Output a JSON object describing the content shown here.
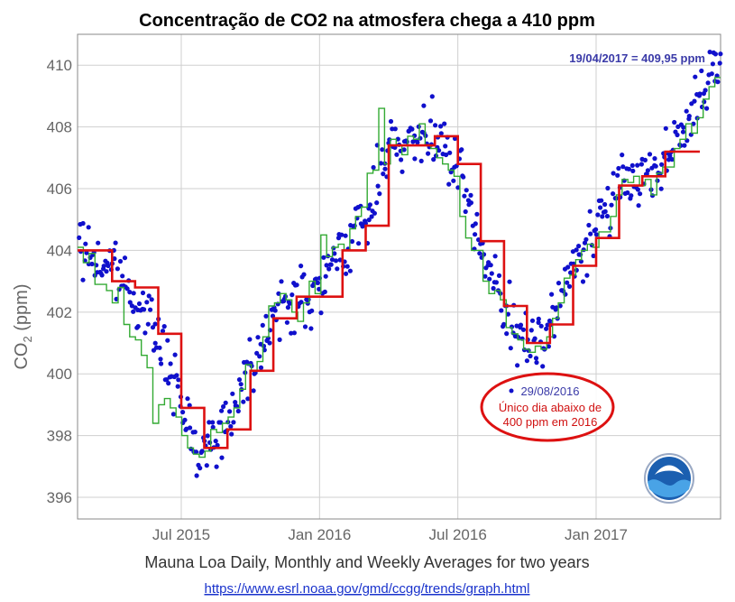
{
  "chart_data": {
    "type": "scatter",
    "title": "Concentração de CO2 na atmosfera chega a 410 ppm",
    "ylabel_main": "CO",
    "ylabel_sub": "2",
    "ylabel_unit": " (ppm)",
    "xlabel": "Mauna Loa Daily, Monthly and Weekly Averages for two years",
    "source_url": "https://www.esrl.noaa.gov/gmd/ccgg/trends/graph.html",
    "ylim": [
      395.3,
      411.0
    ],
    "xlim": [
      2015.125,
      2017.45
    ],
    "yticks": [
      396,
      398,
      400,
      402,
      404,
      406,
      408,
      410
    ],
    "ytick_labels": [
      "396",
      "398",
      "400",
      "402",
      "404",
      "406",
      "408",
      "410"
    ],
    "xticks": [
      2015.5,
      2016.0,
      2016.5,
      2017.0
    ],
    "xtick_labels": [
      "Jul 2015",
      "Jan 2016",
      "Jul 2016",
      "Jan 2017"
    ],
    "grid": true,
    "colors": {
      "daily": "#1010cc",
      "weekly": "#33aa33",
      "monthly": "#dd1111",
      "annotation_circle": "#dd1111"
    },
    "monthly": {
      "name": "Monthly",
      "x_start": [
        2015.125,
        2015.25,
        2015.333,
        2015.417,
        2015.5,
        2015.583,
        2015.667,
        2015.75,
        2015.833,
        2015.917,
        2016.0,
        2016.083,
        2016.167,
        2016.25,
        2016.333,
        2016.417,
        2016.5,
        2016.583,
        2016.667,
        2016.75,
        2016.833,
        2016.917,
        2017.0,
        2017.083,
        2017.167,
        2017.25,
        2017.333
      ],
      "values": [
        404.0,
        403.0,
        402.8,
        401.3,
        398.9,
        397.6,
        398.2,
        400.1,
        401.8,
        402.5,
        402.5,
        404.0,
        404.8,
        407.4,
        407.4,
        407.7,
        406.8,
        404.3,
        402.2,
        401.0,
        401.6,
        403.5,
        404.4,
        406.1,
        406.4,
        407.2,
        407.2
      ],
      "x_end": 2017.375
    },
    "weekly": {
      "name": "Weekly",
      "values": [
        404.1,
        403.6,
        403.9,
        402.9,
        402.9,
        402.7,
        402.3,
        402.8,
        401.6,
        401.2,
        401.1,
        400.6,
        400.2,
        398.4,
        399.0,
        399.2,
        398.9,
        398.6,
        398.0,
        397.6,
        397.4,
        397.3,
        397.5,
        398.2,
        398.1,
        398.4,
        398.6,
        398.9,
        399.5,
        400.3,
        400.1,
        400.4,
        401.2,
        402.2,
        402.3,
        402.6,
        402.4,
        402.0,
        401.7,
        402.3,
        403.0,
        402.6,
        404.5,
        403.8,
        404.1,
        404.2,
        404.0,
        404.7,
        405.1,
        405.4,
        406.5,
        406.6,
        408.6,
        406.8,
        407.6,
        407.4,
        407.1,
        407.7,
        407.6,
        408.1,
        407.4,
        407.3,
        407.0,
        406.8,
        406.6,
        406.4,
        405.1,
        404.4,
        404.0,
        404.0,
        403.0,
        402.6,
        402.7,
        402.4,
        401.5,
        401.3,
        401.1,
        400.8,
        400.7,
        400.9,
        400.8,
        401.2,
        401.8,
        402.3,
        403.1,
        403.2,
        403.7,
        404.0,
        404.2,
        404.1,
        404.6,
        404.6,
        405.1,
        405.8,
        406.3,
        406.2,
        406.4,
        406.1,
        406.3,
        405.8,
        406.5,
        406.7,
        406.7,
        407.3,
        407.6,
        408.1,
        407.8,
        408.3,
        408.9,
        409.3,
        409.6
      ],
      "x_start": 2015.125,
      "x_end": 2017.45
    },
    "daily_trend": [
      [
        2015.13,
        404.1
      ],
      [
        2015.25,
        403.4
      ],
      [
        2015.33,
        402.6
      ],
      [
        2015.42,
        401.2
      ],
      [
        2015.5,
        398.9
      ],
      [
        2015.58,
        397.6
      ],
      [
        2015.67,
        398.5
      ],
      [
        2015.75,
        400.2
      ],
      [
        2015.83,
        401.9
      ],
      [
        2015.92,
        402.4
      ],
      [
        2016.0,
        402.6
      ],
      [
        2016.08,
        404.1
      ],
      [
        2016.17,
        404.9
      ],
      [
        2016.25,
        407.5
      ],
      [
        2016.33,
        407.5
      ],
      [
        2016.42,
        407.7
      ],
      [
        2016.5,
        406.6
      ],
      [
        2016.58,
        404.1
      ],
      [
        2016.67,
        402.0
      ],
      [
        2016.75,
        401.0
      ],
      [
        2016.83,
        401.6
      ],
      [
        2016.92,
        403.6
      ],
      [
        2017.0,
        404.6
      ],
      [
        2017.08,
        406.2
      ],
      [
        2017.17,
        406.5
      ],
      [
        2017.25,
        407.0
      ],
      [
        2017.33,
        408.2
      ],
      [
        2017.42,
        409.5
      ],
      [
        2017.45,
        409.9
      ]
    ],
    "annotations": {
      "top_right": "19/04/2017 = 409,95 ppm",
      "low_day_date": "29/08/2016",
      "low_day_line1": "Único dia abaixo de",
      "low_day_line2": "400 ppm em 2016"
    },
    "logo": "noaa-logo"
  }
}
